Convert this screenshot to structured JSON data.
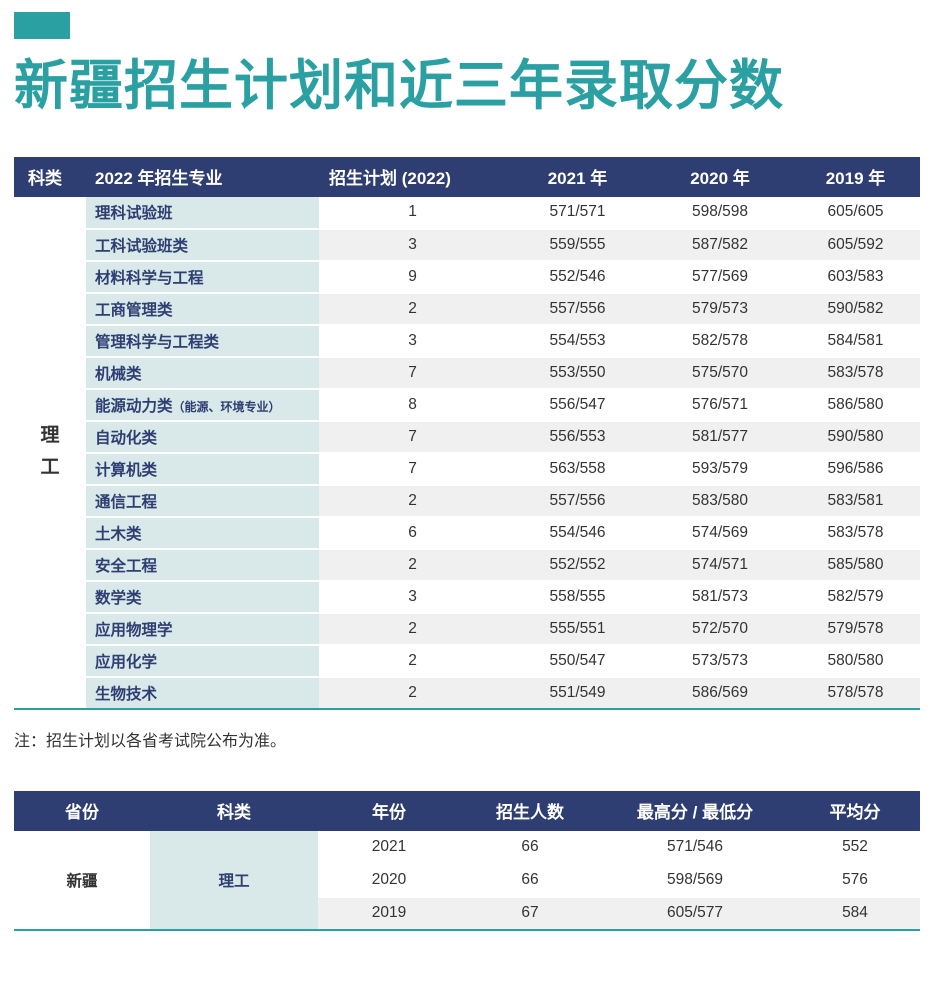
{
  "page": {
    "title": "新疆招生计划和近三年录取分数"
  },
  "colors": {
    "teal": "#2AA0A3",
    "navy": "#2E3E72",
    "cell_teal": "#D9E8E9",
    "row_alt": "#F0F0F0"
  },
  "table1": {
    "headers": {
      "category": "科类",
      "major": "2022 年招生专业",
      "plan": "招生计划 (2022)",
      "y2021": "2021 年",
      "y2020": "2020 年",
      "y2019": "2019 年"
    },
    "category": "理工",
    "rows": [
      {
        "major": "理科试验班",
        "plan": "1",
        "y2021": "571/571",
        "y2020": "598/598",
        "y2019": "605/605"
      },
      {
        "major": "工科试验班类",
        "plan": "3",
        "y2021": "559/555",
        "y2020": "587/582",
        "y2019": "605/592"
      },
      {
        "major": "材料科学与工程",
        "plan": "9",
        "y2021": "552/546",
        "y2020": "577/569",
        "y2019": "603/583"
      },
      {
        "major": "工商管理类",
        "plan": "2",
        "y2021": "557/556",
        "y2020": "579/573",
        "y2019": "590/582"
      },
      {
        "major": "管理科学与工程类",
        "plan": "3",
        "y2021": "554/553",
        "y2020": "582/578",
        "y2019": "584/581"
      },
      {
        "major": "机械类",
        "plan": "7",
        "y2021": "553/550",
        "y2020": "575/570",
        "y2019": "583/578"
      },
      {
        "major": "能源动力类",
        "major_sub": "（能源、环境专业）",
        "plan": "8",
        "y2021": "556/547",
        "y2020": "576/571",
        "y2019": "586/580"
      },
      {
        "major": "自动化类",
        "plan": "7",
        "y2021": "556/553",
        "y2020": "581/577",
        "y2019": "590/580"
      },
      {
        "major": "计算机类",
        "plan": "7",
        "y2021": "563/558",
        "y2020": "593/579",
        "y2019": "596/586"
      },
      {
        "major": "通信工程",
        "plan": "2",
        "y2021": "557/556",
        "y2020": "583/580",
        "y2019": "583/581"
      },
      {
        "major": "土木类",
        "plan": "6",
        "y2021": "554/546",
        "y2020": "574/569",
        "y2019": "583/578"
      },
      {
        "major": "安全工程",
        "plan": "2",
        "y2021": "552/552",
        "y2020": "574/571",
        "y2019": "585/580"
      },
      {
        "major": "数学类",
        "plan": "3",
        "y2021": "558/555",
        "y2020": "581/573",
        "y2019": "582/579"
      },
      {
        "major": "应用物理学",
        "plan": "2",
        "y2021": "555/551",
        "y2020": "572/570",
        "y2019": "579/578"
      },
      {
        "major": "应用化学",
        "plan": "2",
        "y2021": "550/547",
        "y2020": "573/573",
        "y2019": "580/580"
      },
      {
        "major": "生物技术",
        "plan": "2",
        "y2021": "551/549",
        "y2020": "586/569",
        "y2019": "578/578"
      }
    ]
  },
  "note": "注：招生计划以各省考试院公布为准。",
  "table2": {
    "headers": {
      "province": "省份",
      "category": "科类",
      "year": "年份",
      "count": "招生人数",
      "maxmin": "最高分 / 最低分",
      "avg": "平均分"
    },
    "province": "新疆",
    "category": "理工",
    "rows": [
      {
        "year": "2021",
        "count": "66",
        "maxmin": "571/546",
        "avg": "552"
      },
      {
        "year": "2020",
        "count": "66",
        "maxmin": "598/569",
        "avg": "576"
      },
      {
        "year": "2019",
        "count": "67",
        "maxmin": "605/577",
        "avg": "584"
      }
    ]
  }
}
